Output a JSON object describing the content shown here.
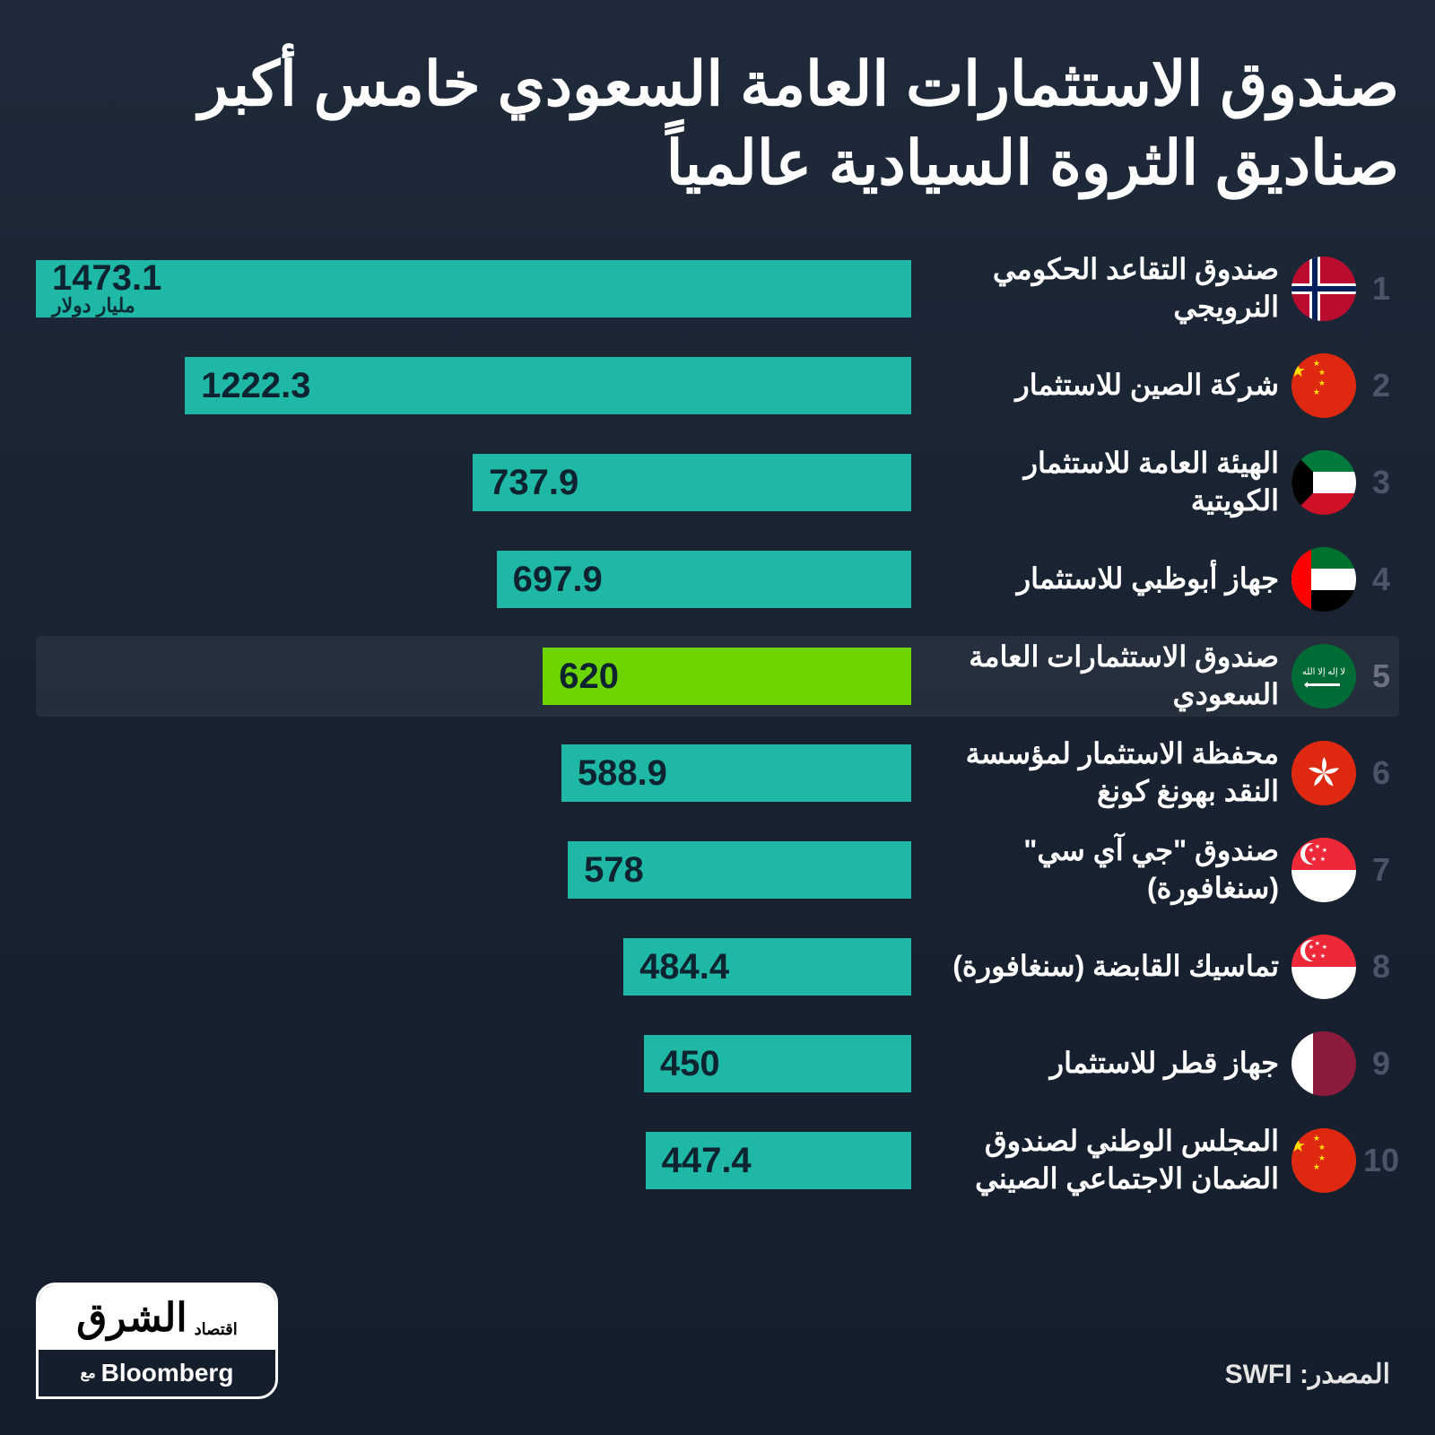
{
  "title": "صندوق الاستثمارات العامة السعودي خامس أكبر صناديق الثروة السيادية عالمياً",
  "unit_label": "مليار دولار",
  "source_label": "المصدر:",
  "source_value": "SWFI",
  "logo": {
    "brand_ar": "الشرق",
    "brand_sub": "اقتصاد",
    "with": "مع",
    "bloomberg": "Bloomberg"
  },
  "chart": {
    "type": "bar",
    "max_value": 1473.1,
    "bar_color": "#1fb8a6",
    "highlight_bar_color": "#6dd400",
    "value_text_color": "#0d2430",
    "highlight_value_text_color": "#0d2430",
    "background_color": "#1a2332",
    "rank_color": "#4a5568",
    "label_color": "#ffffff",
    "highlight_index": 4
  },
  "rows": [
    {
      "rank": "1",
      "label": "صندوق التقاعد الحكومي النرويجي",
      "value": 1473.1,
      "display": "1473.1",
      "show_unit": true,
      "flag": "no"
    },
    {
      "rank": "2",
      "label": "شركة الصين للاستثمار",
      "value": 1222.3,
      "display": "1222.3",
      "show_unit": false,
      "flag": "cn"
    },
    {
      "rank": "3",
      "label": "الهيئة العامة للاستثمار الكويتية",
      "value": 737.9,
      "display": "737.9",
      "show_unit": false,
      "flag": "kw"
    },
    {
      "rank": "4",
      "label": "جهاز أبوظبي للاستثمار",
      "value": 697.9,
      "display": "697.9",
      "show_unit": false,
      "flag": "ae"
    },
    {
      "rank": "5",
      "label": "صندوق الاستثمارات العامة السعودي",
      "value": 620,
      "display": "620",
      "show_unit": false,
      "flag": "sa"
    },
    {
      "rank": "6",
      "label": "محفظة الاستثمار لمؤسسة النقد بهونغ كونغ",
      "value": 588.9,
      "display": "588.9",
      "show_unit": false,
      "flag": "hk"
    },
    {
      "rank": "7",
      "label": "صندوق \"جي آي سي\" (سنغافورة)",
      "value": 578,
      "display": "578",
      "show_unit": false,
      "flag": "sg"
    },
    {
      "rank": "8",
      "label": "تماسيك القابضة (سنغافورة)",
      "value": 484.4,
      "display": "484.4",
      "show_unit": false,
      "flag": "sg"
    },
    {
      "rank": "9",
      "label": "جهاز قطر للاستثمار",
      "value": 450,
      "display": "450",
      "show_unit": false,
      "flag": "qa"
    },
    {
      "rank": "10",
      "label": "المجلس الوطني لصندوق الضمان الاجتماعي الصيني",
      "value": 447.4,
      "display": "447.4",
      "show_unit": false,
      "flag": "cn"
    }
  ]
}
